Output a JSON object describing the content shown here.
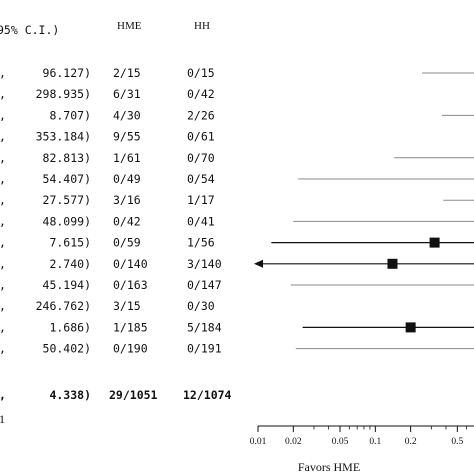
{
  "chart_data": {
    "type": "forest",
    "title": "",
    "headers": {
      "ci": "95% C.I.)",
      "hme": "HME",
      "hh": "HH"
    },
    "rows": [
      {
        "upper": "96.127)",
        "hme": "2/15",
        "hh": "0/15",
        "lower": 0.25,
        "or": null,
        "upper_value": 96.127
      },
      {
        "upper": "298.935)",
        "hme": "6/31",
        "hh": "0/42",
        "lower": null,
        "or": null,
        "upper_value": 298.935
      },
      {
        "upper": "8.707)",
        "hme": "4/30",
        "hh": "2/26",
        "lower": 0.37,
        "or": null,
        "upper_value": 8.707
      },
      {
        "upper": "353.184)",
        "hme": "9/55",
        "hh": "0/61",
        "lower": null,
        "or": null,
        "upper_value": 353.184
      },
      {
        "upper": "82.813)",
        "hme": "1/61",
        "hh": "0/70",
        "lower": 0.145,
        "or": null,
        "upper_value": 82.813
      },
      {
        "upper": "54.407)",
        "hme": "0/49",
        "hh": "0/54",
        "lower": 0.022,
        "or": null,
        "upper_value": 54.407
      },
      {
        "upper": "27.577)",
        "hme": "3/16",
        "hh": "1/17",
        "lower": 0.38,
        "or": null,
        "upper_value": 27.577
      },
      {
        "upper": "48.099)",
        "hme": "0/42",
        "hh": "0/41",
        "lower": 0.02,
        "or": null,
        "upper_value": 48.099
      },
      {
        "upper": "7.615)",
        "hme": "0/59",
        "hh": "1/56",
        "lower": 0.013,
        "or": 0.32,
        "upper_value": 7.615
      },
      {
        "upper": "2.740)",
        "hme": "0/140",
        "hh": "3/140",
        "lower": 0.01,
        "or": 0.14,
        "upper_value": 2.74,
        "arrow_left": true
      },
      {
        "upper": "45.194)",
        "hme": "0/163",
        "hh": "0/147",
        "lower": 0.019,
        "or": null,
        "upper_value": 45.194
      },
      {
        "upper": "246.762)",
        "hme": "3/15",
        "hh": "0/30",
        "lower": null,
        "or": null,
        "upper_value": 246.762
      },
      {
        "upper": "1.686)",
        "hme": "1/185",
        "hh": "5/184",
        "lower": 0.024,
        "or": 0.2,
        "upper_value": 1.686
      },
      {
        "upper": "50.402)",
        "hme": "0/190",
        "hh": "0/191",
        "lower": 0.021,
        "or": null,
        "upper_value": 50.402
      }
    ],
    "total": {
      "upper": "4.338)",
      "hme": "29/1051",
      "hh": "12/1074"
    },
    "footer_fragment": "1",
    "x_axis": {
      "scale": "log",
      "ticks": [
        "0.01",
        "0.02",
        "0.05",
        "0.1",
        "0.2",
        "0.5"
      ],
      "range": [
        0.01,
        0.75
      ],
      "label": "Favors HME"
    },
    "colors": {
      "ink": "#111111",
      "line": "#8a8a8a"
    }
  }
}
